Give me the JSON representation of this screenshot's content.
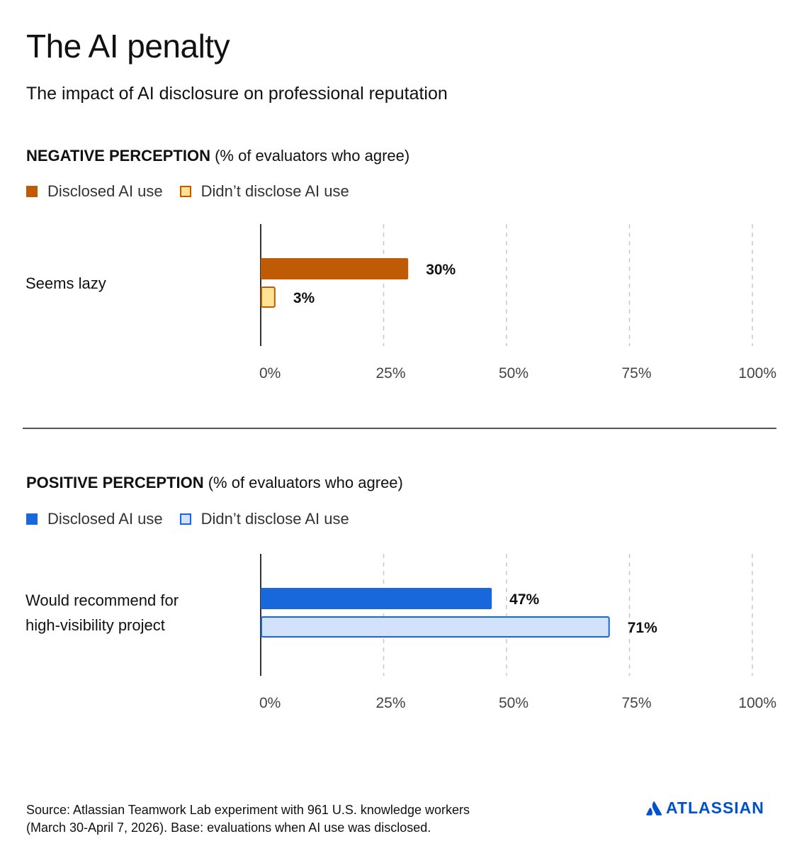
{
  "title": "The AI penalty",
  "subtitle": "The impact of AI disclosure on professional reputation",
  "colors": {
    "negative_disclosed": "#bf5b04",
    "negative_not_disclosed": "#ffe394",
    "negative_not_disclosed_border": "#bf5b04",
    "positive_disclosed": "#1868db",
    "positive_not_disclosed": "#d1e2fa",
    "positive_not_disclosed_border": "#1868db",
    "brand": "#0052cc"
  },
  "chart_data": [
    {
      "type": "bar",
      "orientation": "horizontal",
      "heading_bold": "NEGATIVE PERCEPTION",
      "heading_rest": " (% of evaluators who agree)",
      "categories": [
        "Seems lazy"
      ],
      "series": [
        {
          "name": "Disclosed AI use",
          "values": [
            30
          ],
          "labels": [
            "30%"
          ]
        },
        {
          "name": "Didn’t disclose AI use",
          "values": [
            3
          ],
          "labels": [
            "3%"
          ]
        }
      ],
      "xlim": [
        0,
        100
      ],
      "x_ticks": [
        "0%",
        "25%",
        "50%",
        "75%",
        "100%"
      ],
      "grid": true,
      "legend": "top-left"
    },
    {
      "type": "bar",
      "orientation": "horizontal",
      "heading_bold": "POSITIVE PERCEPTION",
      "heading_rest": " (% of evaluators who agree)",
      "categories": [
        "Would recommend for\nhigh-visibility project"
      ],
      "series": [
        {
          "name": "Disclosed AI use",
          "values": [
            47
          ],
          "labels": [
            "47%"
          ]
        },
        {
          "name": "Didn’t disclose AI use",
          "values": [
            71
          ],
          "labels": [
            "71%"
          ]
        }
      ],
      "xlim": [
        0,
        100
      ],
      "x_ticks": [
        "0%",
        "25%",
        "50%",
        "75%",
        "100%"
      ],
      "grid": true,
      "legend": "top-left"
    }
  ],
  "source_line1": "Source: Atlassian Teamwork Lab experiment with 961 U.S. knowledge workers",
  "source_line2": "(March 30-April 7, 2026). Base: evaluations when AI use was disclosed.",
  "logo_text": "ATLASSIAN",
  "logo_icon": "atlassian-logo-icon"
}
